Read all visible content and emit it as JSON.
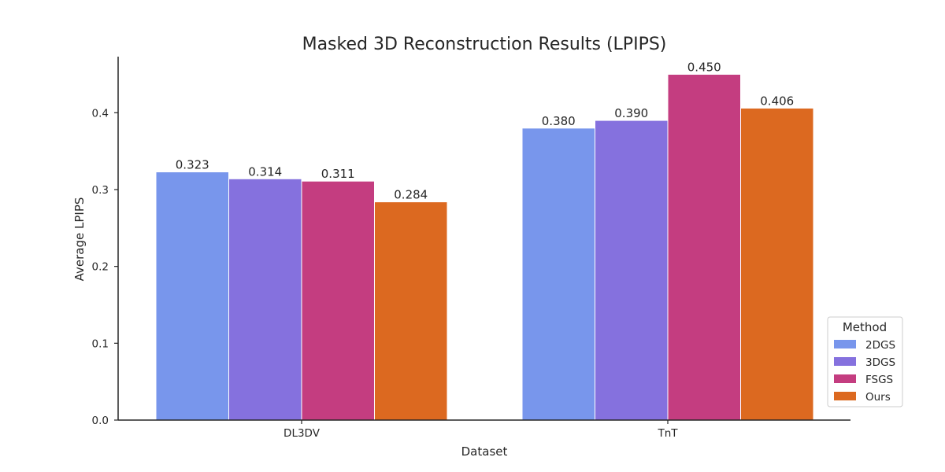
{
  "chart_data": {
    "type": "bar",
    "title": "Masked 3D Reconstruction Results (LPIPS)",
    "xlabel": "Dataset",
    "ylabel": "Average LPIPS",
    "categories": [
      "DL3DV",
      "TnT"
    ],
    "series": [
      {
        "name": "2DGS",
        "values": [
          0.323,
          0.38
        ],
        "value_labels": [
          "0.323",
          "0.380"
        ],
        "color": "#7896EC"
      },
      {
        "name": "3DGS",
        "values": [
          0.314,
          0.39
        ],
        "value_labels": [
          "0.314",
          "0.390"
        ],
        "color": "#8571DE"
      },
      {
        "name": "FSGS",
        "values": [
          0.311,
          0.45
        ],
        "value_labels": [
          "0.311",
          "0.450"
        ],
        "color": "#C43D80"
      },
      {
        "name": "Ours",
        "values": [
          0.284,
          0.406
        ],
        "value_labels": [
          "0.284",
          "0.406"
        ],
        "color": "#DC6920"
      }
    ],
    "ylim": [
      0,
      0.473
    ],
    "yticks": [
      0.0,
      0.1,
      0.2,
      0.3,
      0.4
    ],
    "ytick_labels": [
      "0.0",
      "0.1",
      "0.2",
      "0.3",
      "0.4"
    ],
    "grid": false,
    "legend": {
      "title": "Method",
      "placement": "lower-right"
    }
  }
}
